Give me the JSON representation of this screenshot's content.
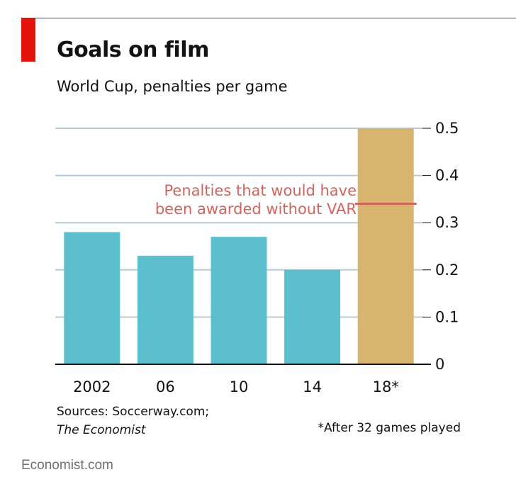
{
  "header": {
    "title": "Goals on film",
    "subtitle": "World Cup, penalties per game"
  },
  "colors": {
    "accent": "#e3120b",
    "bar": "#5bbfce",
    "highlight_bar": "#d8b56f",
    "annotation": "#d2645c",
    "grid": "#b9cad3"
  },
  "chart_data": {
    "type": "bar",
    "categories": [
      "2002",
      "06",
      "10",
      "14",
      "18*"
    ],
    "values": [
      0.28,
      0.23,
      0.27,
      0.2,
      0.5
    ],
    "highlight_index": 4,
    "ylim": [
      0,
      0.5
    ],
    "yticks": [
      0,
      0.1,
      0.2,
      0.3,
      0.4,
      0.5
    ],
    "ytick_labels": [
      "0",
      "0.1",
      "0.2",
      "0.3",
      "0.4",
      "0.5"
    ],
    "y_axis_side": "right",
    "grid": true,
    "reference_line": {
      "value": 0.34,
      "label_lines": [
        "Penalties that would have",
        "been awarded without VAR"
      ]
    }
  },
  "footer": {
    "source_line1": "Sources: Soccerway.com;",
    "source_line2": "The Economist",
    "footnote": "*After 32 games played",
    "brand": "Economist.com"
  }
}
